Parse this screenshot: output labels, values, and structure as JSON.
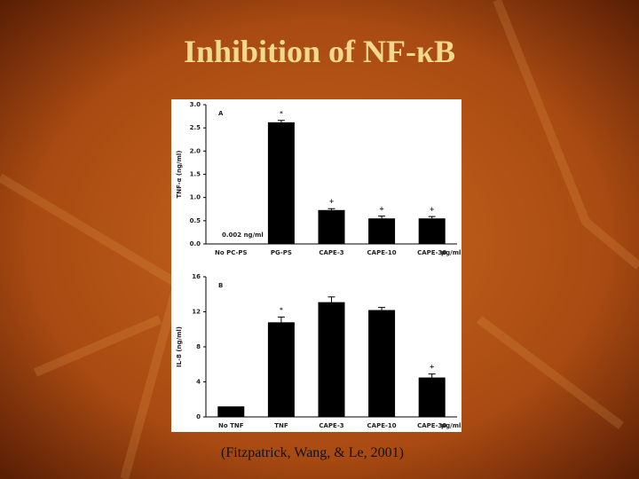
{
  "slide": {
    "title": "Inhibition of NF-κB",
    "citation": "(Fitzpatrick, Wang, & Le, 2001)"
  },
  "chart_data": [
    {
      "type": "bar",
      "panel": "A",
      "y_label": "TNF-α (ng/ml)",
      "annotation": "0.002 ng/ml",
      "x_unit": "μg/ml",
      "categories": [
        "No PC-PS",
        "PG-PS",
        "CAPE-3",
        "CAPE-10",
        "CAPE-30"
      ],
      "values": [
        0.002,
        2.62,
        0.73,
        0.55,
        0.55
      ],
      "errors": [
        0,
        0.04,
        0.03,
        0.05,
        0.04
      ],
      "markers": [
        null,
        "*",
        "+",
        "+",
        "+"
      ],
      "color": "#000000",
      "ylim": [
        0,
        3
      ],
      "yticks": [
        {
          "value": 0,
          "label": "0.0"
        },
        0.5,
        {
          "value": 1,
          "label": "1.0"
        },
        1.5,
        {
          "value": 2,
          "label": "2.0"
        },
        2.5,
        {
          "value": 3,
          "label": "3.0"
        }
      ]
    },
    {
      "type": "bar",
      "panel": "B",
      "y_label": "IL-8 (ng/ml)",
      "x_unit": "μg/ml",
      "categories": [
        "No TNF",
        "TNF",
        "CAPE-3",
        "CAPE-10",
        "CAPE-30"
      ],
      "values": [
        1.2,
        10.8,
        13.1,
        12.2,
        4.5
      ],
      "errors": [
        0,
        0.6,
        0.6,
        0.3,
        0.4
      ],
      "markers": [
        null,
        "*",
        null,
        null,
        "+"
      ],
      "color": "#000000",
      "ylim": [
        0,
        16
      ],
      "yticks": [
        0,
        4,
        8,
        12,
        16
      ]
    }
  ]
}
